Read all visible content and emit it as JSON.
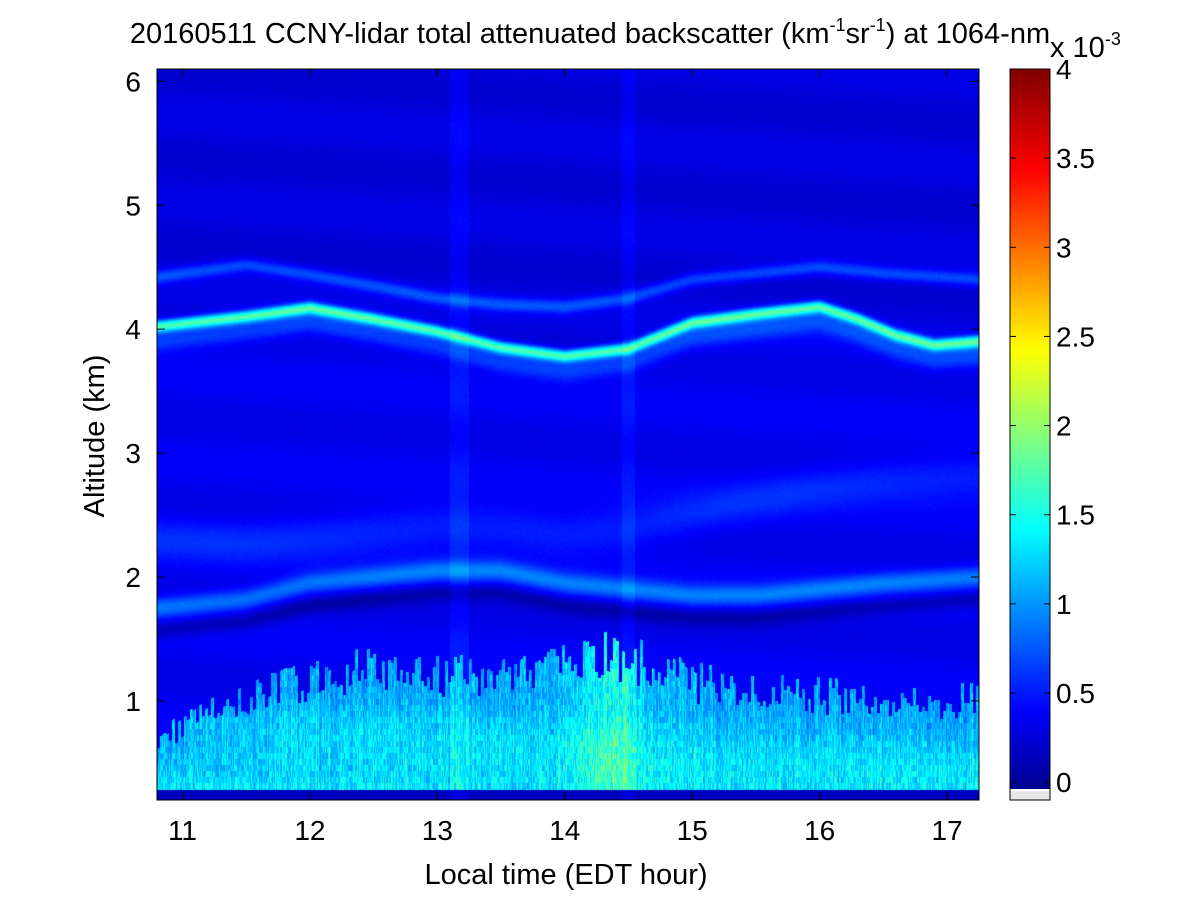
{
  "chart_data": {
    "type": "heatmap",
    "title": {
      "date": "20160511",
      "text_part1": "CCNY-lidar total attenuated backscatter (km",
      "exp1": "-1",
      "text_part2": "sr",
      "exp2": "-1",
      "text_part3": ") at 1064-nm"
    },
    "xlabel": "Local time (EDT hour)",
    "ylabel": "Altitude (km)",
    "xlim": [
      10.8,
      17.25
    ],
    "ylim": [
      0.2,
      6.1
    ],
    "x_ticks": [
      11,
      12,
      13,
      14,
      15,
      16,
      17
    ],
    "x_tick_labels": [
      "11",
      "12",
      "13",
      "14",
      "15",
      "16",
      "17"
    ],
    "y_ticks": [
      1,
      2,
      3,
      4,
      5,
      6
    ],
    "y_tick_labels": [
      "1",
      "2",
      "3",
      "4",
      "5",
      "6"
    ],
    "colormap": "jet",
    "colorbar": {
      "range": [
        -0.1,
        4
      ],
      "ticks": [
        0,
        0.5,
        1,
        1.5,
        2,
        2.5,
        3,
        3.5,
        4
      ],
      "tick_labels": [
        "0",
        "0.5",
        "1",
        "1.5",
        "2",
        "2.5",
        "3",
        "3.5",
        "4"
      ],
      "exponent_base": "x 10",
      "exponent_power": "-3",
      "underflow_color": "#e6e6e6"
    },
    "background_level": 0.35,
    "layers": [
      {
        "name": "aerosol layer top (~4 km)",
        "time": [
          10.8,
          11.5,
          12.0,
          12.5,
          13.0,
          13.5,
          14.0,
          14.5,
          15.0,
          15.5,
          16.0,
          16.3,
          16.6,
          16.9,
          17.25
        ],
        "altitude": [
          4.02,
          4.1,
          4.17,
          4.08,
          3.98,
          3.85,
          3.78,
          3.84,
          4.05,
          4.12,
          4.18,
          4.08,
          3.95,
          3.87,
          3.9
        ],
        "peak": 1.4
      },
      {
        "name": "upper faint layer",
        "time": [
          10.8,
          11.5,
          12.0,
          12.5,
          13.0,
          13.5,
          14.0,
          14.5,
          15.0,
          15.5,
          16.0,
          16.5,
          17.25
        ],
        "altitude": [
          4.42,
          4.52,
          4.44,
          4.35,
          4.25,
          4.2,
          4.18,
          4.25,
          4.4,
          4.45,
          4.5,
          4.45,
          4.4
        ],
        "peak": 0.85
      },
      {
        "name": "elevated layer (~1.8-2.3 km)",
        "time": [
          10.8,
          11.5,
          12.0,
          12.5,
          13.0,
          13.5,
          14.0,
          14.5,
          15.0,
          15.5,
          16.0,
          16.5,
          17.25
        ],
        "altitude": [
          1.75,
          1.82,
          1.95,
          2.0,
          2.05,
          2.05,
          1.95,
          1.9,
          1.85,
          1.85,
          1.9,
          1.95,
          2.0
        ],
        "peak": 1.2
      },
      {
        "name": "layer (~2.3-2.8 km)",
        "time": [
          10.8,
          11.5,
          12.0,
          12.5,
          13.0,
          13.5,
          14.0,
          14.5,
          15.0,
          15.5,
          16.0,
          16.5,
          17.25
        ],
        "altitude": [
          2.3,
          2.28,
          2.32,
          2.38,
          2.42,
          2.4,
          2.35,
          2.38,
          2.5,
          2.62,
          2.72,
          2.78,
          2.82
        ],
        "peak": 0.75
      },
      {
        "name": "boundary layer",
        "time": [
          10.8,
          11.2,
          11.6,
          12.0,
          12.4,
          12.8,
          13.2,
          13.6,
          14.0,
          14.3,
          14.6,
          15.0,
          15.5,
          16.0,
          16.5,
          17.0,
          17.25
        ],
        "altitude": [
          0.7,
          0.9,
          1.05,
          1.15,
          1.25,
          1.2,
          1.2,
          1.25,
          1.3,
          1.4,
          1.3,
          1.15,
          1.1,
          1.05,
          1.0,
          1.0,
          1.0
        ],
        "peak": 1.5
      }
    ]
  }
}
